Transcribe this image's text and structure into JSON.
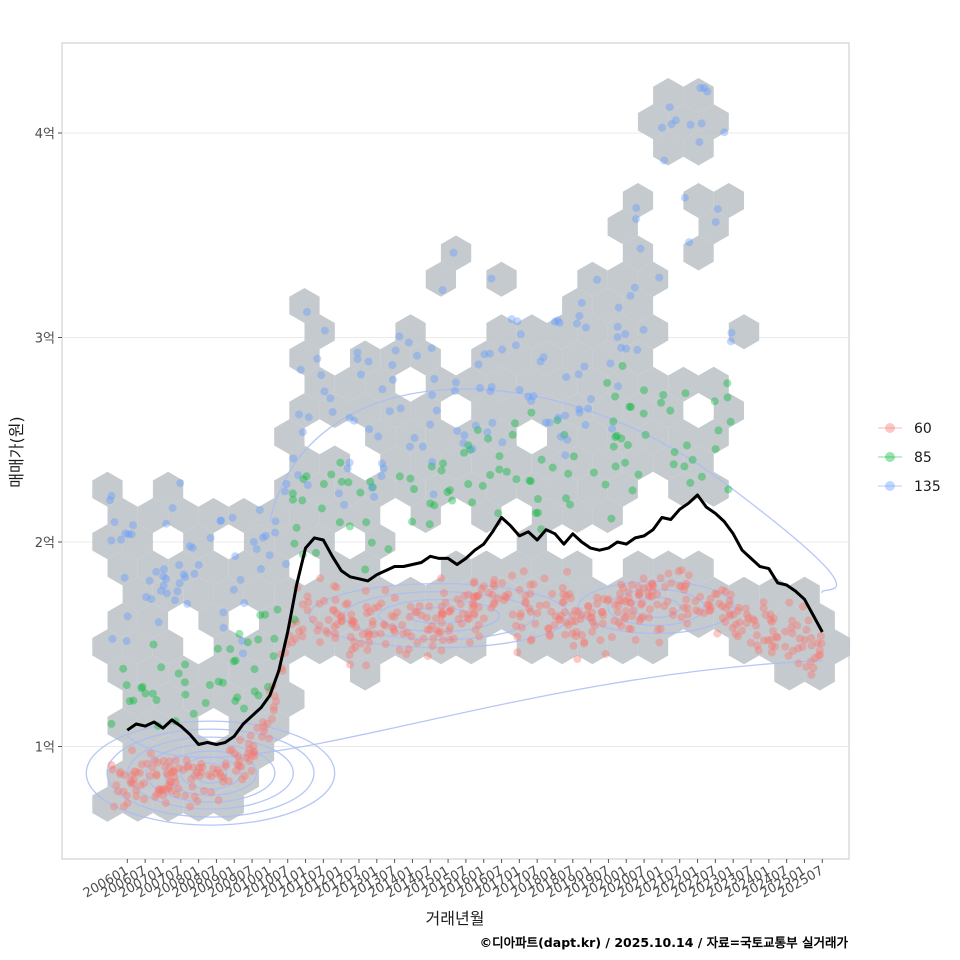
{
  "chart_data": {
    "type": "scatter",
    "title": "",
    "xlabel": "거래년월",
    "ylabel": "매매가(원)",
    "caption": "©디아파트(dapt.kr) / 2025.10.14 / 자료=국토교통부 실거래가",
    "x_tick_labels": [
      "200601",
      "200607",
      "200701",
      "200707",
      "200801",
      "200807",
      "200901",
      "200907",
      "201001",
      "201007",
      "201101",
      "201107",
      "201201",
      "201207",
      "201301",
      "201307",
      "201401",
      "201407",
      "201501",
      "201507",
      "201601",
      "201607",
      "201701",
      "201707",
      "201801",
      "201807",
      "201901",
      "201907",
      "202001",
      "202007",
      "202101",
      "202107",
      "202201",
      "202207",
      "202301",
      "202307",
      "202401",
      "202407",
      "202501",
      "202507"
    ],
    "x_range_months": [
      -22,
      243
    ],
    "y_ticks": [
      {
        "value": 1.0,
        "label": "1억"
      },
      {
        "value": 2.0,
        "label": "2억"
      },
      {
        "value": 3.0,
        "label": "3억"
      },
      {
        "value": 4.0,
        "label": "4억"
      }
    ],
    "y_unit": "억원",
    "ylim": [
      0.45,
      4.44
    ],
    "grid": true,
    "legend": {
      "position": "right",
      "entries": [
        {
          "name": "60",
          "color": "#F8766D"
        },
        {
          "name": "85",
          "color": "#00BA38"
        },
        {
          "name": "135",
          "color": "#619CFF"
        }
      ]
    },
    "hexbin_color": "#bfc4c9",
    "contour_color": "#a9bcf5",
    "trend_color": "#000000",
    "trend_line": {
      "name": "moving average",
      "x_months": [
        0,
        3,
        6,
        9,
        12,
        15,
        18,
        21,
        24,
        27,
        30,
        33,
        36,
        39,
        42,
        45,
        48,
        51,
        54,
        57,
        60,
        63,
        66,
        69,
        72,
        75,
        78,
        81,
        84,
        87,
        90,
        93,
        96,
        99,
        102,
        105,
        108,
        111,
        114,
        117,
        120,
        123,
        126,
        129,
        132,
        135,
        138,
        141,
        144,
        147,
        150,
        153,
        156,
        159,
        162,
        165,
        168,
        171,
        174,
        177,
        180,
        183,
        186,
        189,
        192,
        195,
        198,
        201,
        204,
        207,
        210,
        213,
        216,
        219,
        222,
        225,
        228,
        231,
        234
      ],
      "values": [
        1.08,
        1.11,
        1.1,
        1.12,
        1.09,
        1.13,
        1.1,
        1.06,
        1.01,
        1.02,
        1.01,
        1.02,
        1.05,
        1.11,
        1.15,
        1.19,
        1.25,
        1.37,
        1.56,
        1.79,
        1.97,
        2.02,
        2.01,
        1.93,
        1.86,
        1.83,
        1.82,
        1.81,
        1.84,
        1.86,
        1.88,
        1.88,
        1.89,
        1.9,
        1.93,
        1.92,
        1.92,
        1.89,
        1.92,
        1.96,
        1.99,
        2.05,
        2.12,
        2.08,
        2.03,
        2.05,
        2.01,
        2.06,
        2.04,
        1.99,
        2.04,
        2.0,
        1.97,
        1.96,
        1.97,
        2.0,
        1.99,
        2.02,
        2.03,
        2.06,
        2.12,
        2.11,
        2.16,
        2.19,
        2.23,
        2.17,
        2.14,
        2.1,
        2.04,
        1.96,
        1.92,
        1.88,
        1.87,
        1.8,
        1.79,
        1.76,
        1.72,
        1.64,
        1.56
      ]
    },
    "series_centers": [
      {
        "name": "60",
        "points": [
          [
            -6,
            0.84
          ],
          [
            0,
            0.85
          ],
          [
            6,
            0.86
          ],
          [
            12,
            0.84
          ],
          [
            18,
            0.85
          ],
          [
            24,
            0.86
          ],
          [
            30,
            0.87
          ],
          [
            36,
            0.89
          ],
          [
            39,
            0.92
          ],
          [
            42,
            0.98
          ],
          [
            45,
            1.05
          ],
          [
            48,
            1.15
          ],
          [
            51,
            1.3
          ],
          [
            54,
            1.48
          ],
          [
            57,
            1.6
          ],
          [
            60,
            1.63
          ],
          [
            66,
            1.65
          ],
          [
            72,
            1.61
          ],
          [
            78,
            1.58
          ],
          [
            84,
            1.58
          ],
          [
            90,
            1.6
          ],
          [
            96,
            1.62
          ],
          [
            102,
            1.62
          ],
          [
            108,
            1.63
          ],
          [
            114,
            1.66
          ],
          [
            120,
            1.7
          ],
          [
            126,
            1.69
          ],
          [
            132,
            1.68
          ],
          [
            138,
            1.67
          ],
          [
            144,
            1.66
          ],
          [
            150,
            1.63
          ],
          [
            156,
            1.6
          ],
          [
            162,
            1.62
          ],
          [
            168,
            1.64
          ],
          [
            174,
            1.68
          ],
          [
            180,
            1.73
          ],
          [
            186,
            1.75
          ],
          [
            192,
            1.73
          ],
          [
            198,
            1.7
          ],
          [
            204,
            1.66
          ],
          [
            210,
            1.6
          ],
          [
            216,
            1.57
          ],
          [
            222,
            1.55
          ],
          [
            228,
            1.52
          ],
          [
            234,
            1.48
          ]
        ]
      },
      {
        "name": "85",
        "points": [
          [
            -6,
            1.27
          ],
          [
            0,
            1.28
          ],
          [
            6,
            1.3
          ],
          [
            12,
            1.28
          ],
          [
            18,
            1.3
          ],
          [
            24,
            1.33
          ],
          [
            30,
            1.35
          ],
          [
            36,
            1.36
          ],
          [
            42,
            1.42
          ],
          [
            48,
            1.55
          ],
          [
            54,
            1.8
          ],
          [
            60,
            2.24
          ],
          [
            66,
            2.3
          ],
          [
            72,
            2.2
          ],
          [
            78,
            2.1
          ],
          [
            84,
            2.12
          ],
          [
            90,
            2.16
          ],
          [
            96,
            2.22
          ],
          [
            102,
            2.26
          ],
          [
            108,
            2.3
          ],
          [
            114,
            2.36
          ],
          [
            120,
            2.46
          ],
          [
            126,
            2.38
          ],
          [
            132,
            2.34
          ],
          [
            138,
            2.33
          ],
          [
            144,
            2.4
          ],
          [
            150,
            2.35
          ],
          [
            156,
            2.38
          ],
          [
            162,
            2.4
          ],
          [
            168,
            2.55
          ],
          [
            174,
            2.62
          ],
          [
            180,
            2.66
          ],
          [
            186,
            2.62
          ],
          [
            192,
            2.54
          ],
          [
            198,
            2.49
          ],
          [
            204,
            2.45
          ]
        ]
      },
      {
        "name": "135",
        "points": [
          [
            -6,
            1.88
          ],
          [
            0,
            1.9
          ],
          [
            6,
            1.78
          ],
          [
            12,
            1.88
          ],
          [
            18,
            1.85
          ],
          [
            24,
            1.8
          ],
          [
            30,
            1.82
          ],
          [
            36,
            1.86
          ],
          [
            42,
            1.9
          ],
          [
            48,
            1.95
          ],
          [
            54,
            2.2
          ],
          [
            60,
            2.75
          ],
          [
            66,
            2.78
          ],
          [
            72,
            2.58
          ],
          [
            78,
            2.66
          ],
          [
            84,
            2.55
          ],
          [
            90,
            2.72
          ],
          [
            96,
            2.74
          ],
          [
            102,
            2.7
          ],
          [
            108,
            2.86
          ],
          [
            114,
            2.62
          ],
          [
            120,
            2.82
          ],
          [
            126,
            2.74
          ],
          [
            132,
            2.95
          ],
          [
            138,
            2.58
          ],
          [
            144,
            2.74
          ],
          [
            150,
            2.64
          ],
          [
            156,
            2.95
          ],
          [
            162,
            2.75
          ],
          [
            168,
            3.05
          ],
          [
            174,
            3.62
          ],
          [
            180,
            3.92
          ],
          [
            186,
            3.78
          ],
          [
            192,
            4.22
          ],
          [
            198,
            3.7
          ],
          [
            204,
            3.43
          ]
        ]
      }
    ]
  }
}
